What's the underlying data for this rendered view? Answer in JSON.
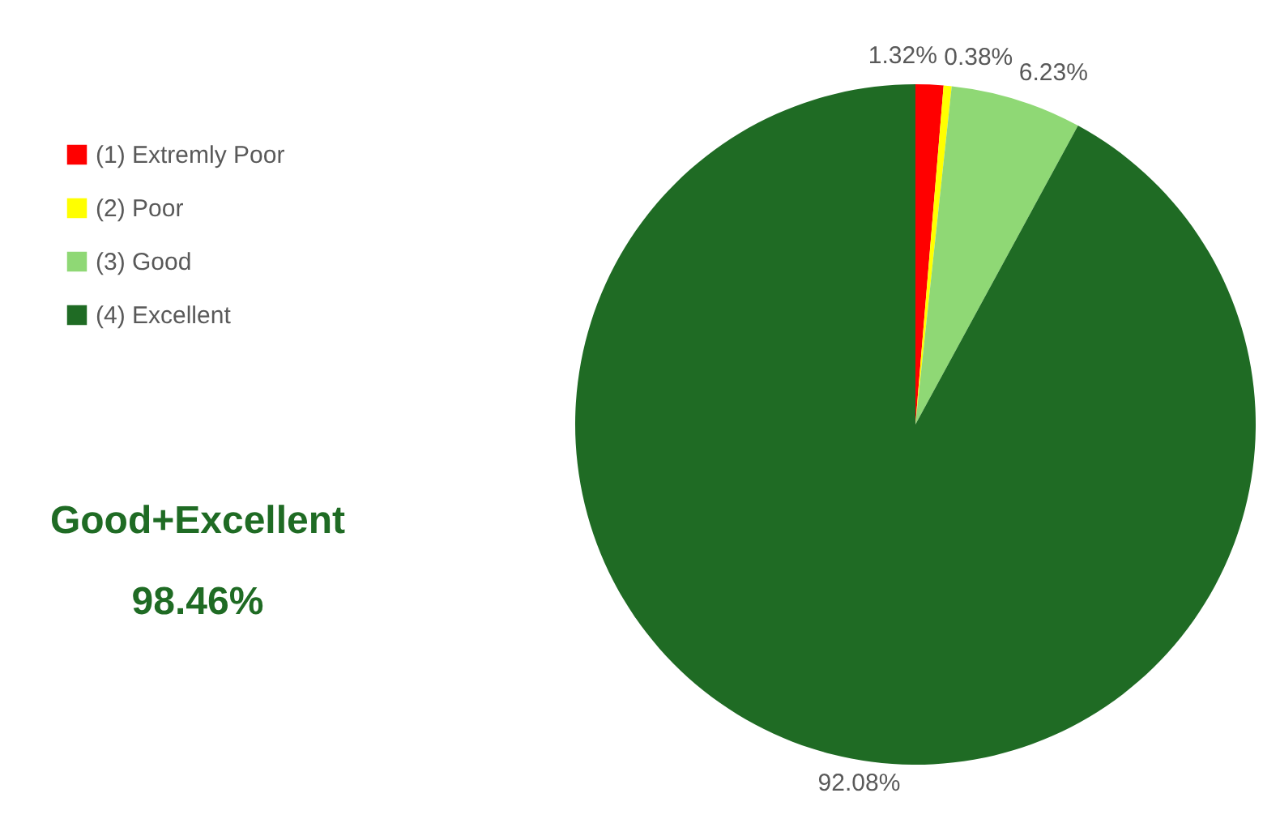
{
  "chart_data": {
    "type": "pie",
    "categories": [
      "(1) Extremly Poor",
      "(2) Poor",
      "(3) Good",
      "(4) Excellent"
    ],
    "values": [
      1.32,
      0.38,
      6.23,
      92.08
    ],
    "colors": [
      "#ff0000",
      "#ffff00",
      "#8fd875",
      "#1f6b24"
    ],
    "value_labels": [
      "1.32%",
      "0.38%",
      "6.23%",
      "92.08%"
    ],
    "legend": "left",
    "annotations": [
      "Good+Excellent",
      "98.46%"
    ]
  }
}
